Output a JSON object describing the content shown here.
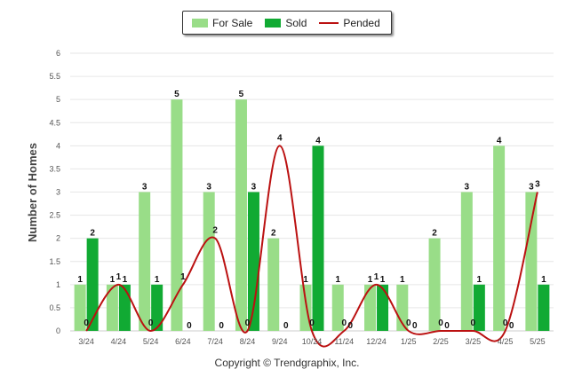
{
  "chart_data": {
    "type": "bar",
    "categories": [
      "3/24",
      "4/24",
      "5/24",
      "6/24",
      "7/24",
      "8/24",
      "9/24",
      "10/24",
      "11/24",
      "12/24",
      "1/25",
      "2/25",
      "3/25",
      "4/25",
      "5/25"
    ],
    "series": [
      {
        "name": "For Sale",
        "kind": "bar",
        "color": "#99dd88",
        "values": [
          1,
          1,
          3,
          5,
          3,
          5,
          2,
          1,
          1,
          1,
          1,
          2,
          3,
          4,
          3
        ]
      },
      {
        "name": "Sold",
        "kind": "bar",
        "color": "#11aa33",
        "values": [
          2,
          1,
          1,
          0,
          0,
          3,
          0,
          4,
          0,
          1,
          0,
          0,
          1,
          0,
          1
        ]
      },
      {
        "name": "Pended",
        "kind": "line",
        "color": "#bb1111",
        "values": [
          0,
          1,
          0,
          1,
          2,
          0,
          4,
          0,
          0,
          1,
          0,
          0,
          0,
          0,
          3
        ]
      }
    ],
    "ylabel": "Number of Homes",
    "xlabel": "",
    "ylim": [
      0,
      6
    ],
    "yticks": [
      0,
      0.5,
      1,
      1.5,
      2,
      2.5,
      3,
      3.5,
      4,
      4.5,
      5,
      5.5,
      6
    ],
    "ytick_labels": [
      "0",
      "0.5",
      "1",
      "1.5",
      "2",
      "2.5",
      "3",
      "3.5",
      "4",
      "4.5",
      "5",
      "5.5",
      "6"
    ],
    "grid": true,
    "legend_position": "top-center"
  },
  "legend": {
    "for_sale": "For Sale",
    "sold": "Sold",
    "pended": "Pended"
  },
  "footer": {
    "copyright": "Copyright © Trendgraphix, Inc."
  }
}
